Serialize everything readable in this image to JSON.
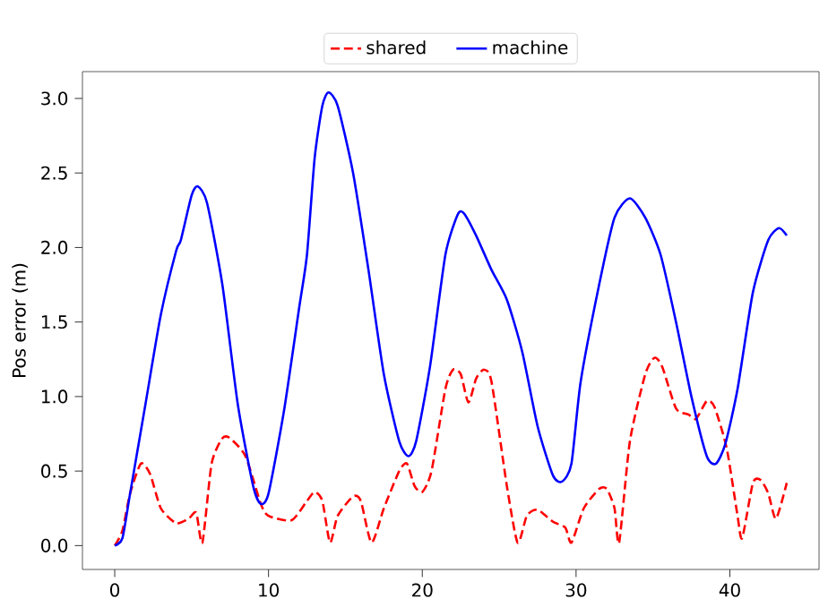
{
  "chart_data": {
    "type": "line",
    "ylabel": "Pos error (m)",
    "legend": "top",
    "xlim": [
      -2.1,
      45.8
    ],
    "ylim": [
      -0.16,
      3.18
    ],
    "xticks": [
      0,
      10,
      20,
      30,
      40
    ],
    "yticks": [
      {
        "value": 0,
        "label": "0.0"
      },
      {
        "value": 0.5,
        "label": "0.5"
      },
      {
        "value": 1,
        "label": "1.0"
      },
      {
        "value": 1.5,
        "label": "1.5"
      },
      {
        "value": 2,
        "label": "2.0"
      },
      {
        "value": 2.5,
        "label": "2.5"
      },
      {
        "value": 3,
        "label": "3.0"
      }
    ],
    "series": [
      {
        "name": "shared",
        "color": "#ff0000",
        "line_style": "dashed",
        "x": [
          0,
          0.5,
          1,
          1.7,
          2.3,
          3,
          4,
          4.8,
          5.3,
          5.7,
          6.3,
          7,
          7.5,
          8.5,
          9.5,
          10,
          11.5,
          12.5,
          13,
          13.5,
          14,
          14.5,
          15.5,
          16,
          16.7,
          17.5,
          18.5,
          19,
          19.5,
          20,
          20.6,
          21.5,
          22,
          22.5,
          23,
          23.5,
          24,
          24.5,
          25.5,
          26.2,
          26.8,
          27.5,
          28.5,
          29.3,
          29.7,
          30.5,
          31.5,
          32,
          32.5,
          32.8,
          33.5,
          34.5,
          35.1,
          35.6,
          36.5,
          37.3,
          37.8,
          38.5,
          39,
          39.8,
          40.5,
          40.8,
          41.5,
          42,
          42.5,
          43,
          43.7
        ],
        "values": [
          0,
          0.1,
          0.35,
          0.55,
          0.48,
          0.25,
          0.15,
          0.18,
          0.22,
          0.02,
          0.55,
          0.72,
          0.72,
          0.6,
          0.28,
          0.2,
          0.17,
          0.3,
          0.36,
          0.3,
          0.02,
          0.2,
          0.33,
          0.3,
          0.02,
          0.25,
          0.5,
          0.55,
          0.4,
          0.36,
          0.5,
          1.05,
          1.18,
          1.15,
          0.96,
          1.12,
          1.18,
          1.1,
          0.4,
          0.02,
          0.2,
          0.24,
          0.16,
          0.12,
          0.02,
          0.25,
          0.38,
          0.38,
          0.25,
          0.02,
          0.7,
          1.15,
          1.26,
          1.2,
          0.92,
          0.88,
          0.85,
          0.97,
          0.93,
          0.65,
          0.2,
          0.05,
          0.42,
          0.44,
          0.35,
          0.18,
          0.42
        ]
      },
      {
        "name": "machine",
        "color": "#0000ff",
        "line_style": "solid",
        "x": [
          0,
          0.5,
          1,
          2,
          3,
          4,
          4.3,
          5,
          5.4,
          6,
          7,
          8,
          9,
          9.5,
          10,
          11,
          12,
          12.5,
          13,
          13.5,
          13.9,
          14.5,
          15.5,
          16.5,
          17.5,
          18.5,
          19.1,
          19.6,
          20.5,
          21.5,
          22.3,
          22.7,
          23.5,
          24.5,
          25.5,
          26.5,
          27.5,
          28.5,
          29.1,
          29.7,
          30.3,
          31.5,
          32.5,
          33.5,
          34.5,
          35.5,
          36.5,
          37.5,
          38.5,
          39.1,
          39.7,
          40.5,
          41.5,
          42.5,
          43.2,
          43.7
        ],
        "values": [
          0,
          0.05,
          0.35,
          0.95,
          1.55,
          1.98,
          2.05,
          2.35,
          2.41,
          2.3,
          1.75,
          0.95,
          0.4,
          0.28,
          0.35,
          0.9,
          1.6,
          1.95,
          2.6,
          2.95,
          3.04,
          2.95,
          2.5,
          1.85,
          1.15,
          0.7,
          0.6,
          0.7,
          1.2,
          1.95,
          2.22,
          2.23,
          2.08,
          1.85,
          1.65,
          1.3,
          0.8,
          0.47,
          0.43,
          0.55,
          1.1,
          1.75,
          2.2,
          2.33,
          2.2,
          1.95,
          1.5,
          1.0,
          0.6,
          0.55,
          0.68,
          1.05,
          1.7,
          2.05,
          2.13,
          2.08
        ]
      }
    ]
  }
}
